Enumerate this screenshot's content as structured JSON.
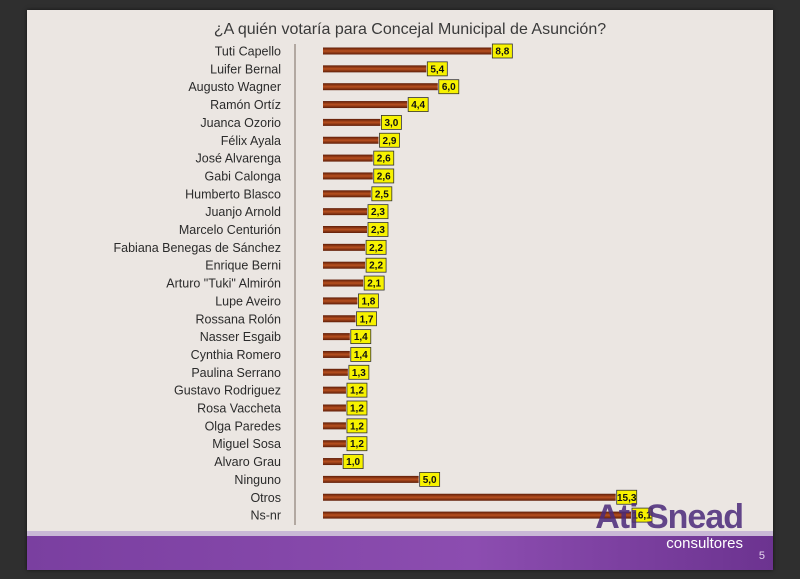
{
  "chart_data": {
    "type": "bar",
    "orientation": "horizontal",
    "title": "¿A quién votaría para Concejal Municipal de Asunción?",
    "xlabel": "",
    "ylabel": "",
    "categories": [
      "Tuti Capello",
      "Luifer Bernal",
      "Augusto Wagner",
      "Ramón Ortíz",
      "Juanca Ozorio",
      "Félix Ayala",
      "José Alvarenga",
      "Gabi Calonga",
      "Humberto Blasco",
      "Juanjo Arnold",
      "Marcelo Centurión",
      "Fabiana Benegas de Sánchez",
      "Enrique Berni",
      "Arturo \"Tuki\" Almirón",
      "Lupe Aveiro",
      "Rossana Rolón",
      "Nasser Esgaib",
      "Cynthia Romero",
      "Paulina Serrano",
      "Gustavo Rodriguez",
      "Rosa Vaccheta",
      "Olga Paredes",
      "Miguel Sosa",
      "Alvaro Grau",
      "Ninguno",
      "Otros",
      "Ns-nr"
    ],
    "values": [
      8.8,
      5.4,
      6.0,
      4.4,
      3.0,
      2.9,
      2.6,
      2.6,
      2.5,
      2.3,
      2.3,
      2.2,
      2.2,
      2.1,
      1.8,
      1.7,
      1.4,
      1.4,
      1.3,
      1.2,
      1.2,
      1.2,
      1.2,
      1.0,
      5.0,
      15.3,
      16.1
    ],
    "value_labels": [
      "8,8",
      "5,4",
      "6,0",
      "4,4",
      "3,0",
      "2,9",
      "2,6",
      "2,6",
      "2,5",
      "2,3",
      "2,3",
      "2,2",
      "2,2",
      "2,1",
      "1,8",
      "1,7",
      "1,4",
      "1,4",
      "1,3",
      "1,2",
      "1,2",
      "1,2",
      "1,2",
      "1,0",
      "5,0",
      "15,3",
      "16,1"
    ],
    "xlim": [
      0,
      16.1
    ],
    "grid": false,
    "legend": "none"
  },
  "colors": {
    "bar_dark": "#5e1d08",
    "bar_mid": "#b8501f",
    "label_bg": "#f7f200",
    "band": "#8448a8"
  },
  "brand": {
    "name": "Ati Snead",
    "subtitle": "consultores",
    "page": "5"
  }
}
